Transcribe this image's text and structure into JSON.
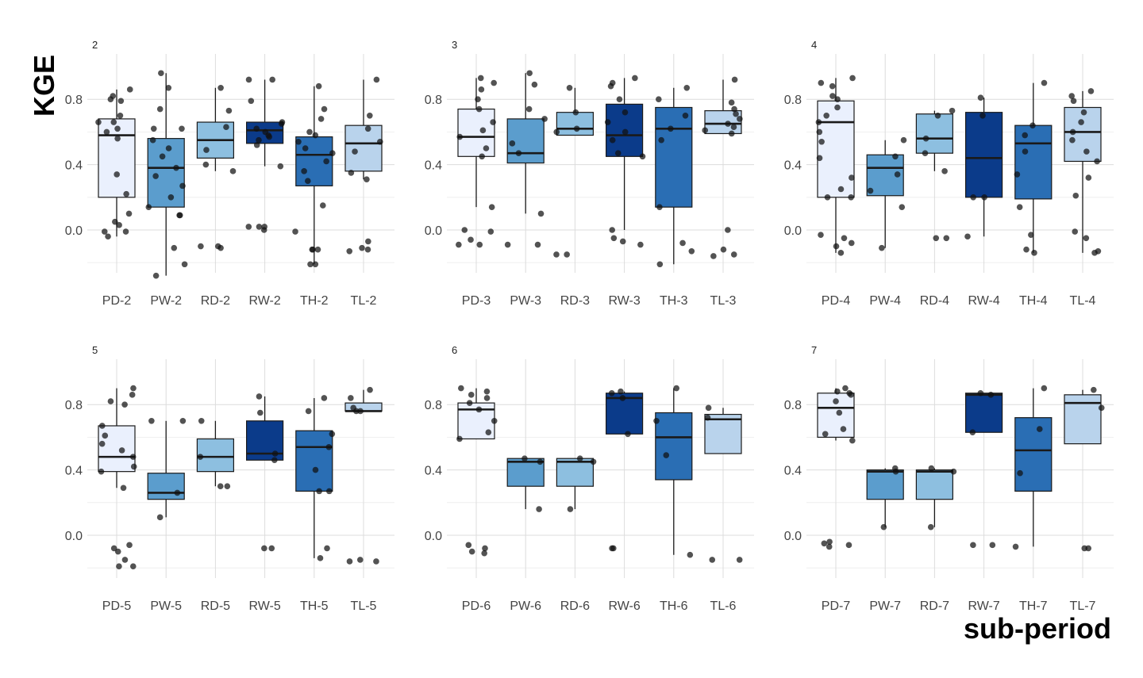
{
  "chart_data": {
    "type": "boxplot",
    "ylabel": "KGE",
    "xlabel": "sub-period",
    "ylim": [
      -0.22,
      0.95
    ],
    "yticks": [
      0.0,
      0.4,
      0.8
    ],
    "ytick_labels": [
      "0.0",
      "0.4",
      "0.8"
    ],
    "grid": true,
    "group_colors": {
      "PD": "#eaf0fd",
      "PW": "#5b9dcd",
      "RD": "#8dbfe0",
      "RW": "#0b3b8a",
      "TH": "#2a6eb4",
      "TL": "#b9d3ec"
    },
    "panels": [
      {
        "title": "2",
        "boxes": [
          {
            "label": "PD-2",
            "group": "PD",
            "q1": 0.2,
            "median": 0.58,
            "q3": 0.68,
            "lower": -0.04,
            "upper": 0.86,
            "points": [
              -0.01,
              -0.01,
              0.03,
              0.05,
              -0.04,
              0.1,
              0.22,
              0.34,
              0.56,
              0.62,
              0.66,
              0.7,
              0.79,
              0.82,
              0.86,
              0.8,
              0.66,
              0.6
            ]
          },
          {
            "label": "PW-2",
            "group": "PW",
            "q1": 0.14,
            "median": 0.38,
            "q3": 0.56,
            "lower": -0.28,
            "upper": 0.96,
            "points": [
              -0.28,
              -0.21,
              -0.11,
              0.09,
              0.09,
              0.14,
              0.2,
              0.27,
              0.33,
              0.38,
              0.55,
              0.62,
              0.62,
              0.74,
              0.87,
              0.96,
              0.45,
              0.5
            ]
          },
          {
            "label": "RD-2",
            "group": "RD",
            "q1": 0.44,
            "median": 0.55,
            "q3": 0.66,
            "lower": 0.36,
            "upper": 0.87,
            "points": [
              -0.1,
              -0.1,
              -0.11,
              0.36,
              0.4,
              0.49,
              0.63,
              0.73,
              0.87
            ]
          },
          {
            "label": "RW-2",
            "group": "RW",
            "q1": 0.53,
            "median": 0.61,
            "q3": 0.66,
            "lower": 0.39,
            "upper": 0.92,
            "points": [
              0.0,
              0.02,
              0.02,
              0.02,
              0.39,
              0.52,
              0.55,
              0.57,
              0.58,
              0.6,
              0.62,
              0.65,
              0.66,
              0.79,
              0.92,
              0.92
            ]
          },
          {
            "label": "TH-2",
            "group": "TH",
            "q1": 0.27,
            "median": 0.46,
            "q3": 0.57,
            "lower": -0.21,
            "upper": 0.88,
            "points": [
              -0.21,
              -0.21,
              -0.12,
              -0.12,
              -0.12,
              -0.01,
              0.15,
              0.3,
              0.36,
              0.42,
              0.47,
              0.5,
              0.54,
              0.58,
              0.6,
              0.68,
              0.74,
              0.88
            ]
          },
          {
            "label": "TL-2",
            "group": "TL",
            "q1": 0.36,
            "median": 0.53,
            "q3": 0.64,
            "lower": 0.31,
            "upper": 0.92,
            "points": [
              -0.07,
              -0.12,
              -0.13,
              -0.11,
              0.31,
              0.35,
              0.48,
              0.54,
              0.62,
              0.7,
              0.92
            ]
          }
        ]
      },
      {
        "title": "3",
        "boxes": [
          {
            "label": "PD-3",
            "group": "PD",
            "q1": 0.45,
            "median": 0.57,
            "q3": 0.74,
            "lower": 0.14,
            "upper": 0.93,
            "points": [
              -0.09,
              -0.09,
              -0.06,
              -0.01,
              0.0,
              0.14,
              0.45,
              0.5,
              0.57,
              0.61,
              0.66,
              0.74,
              0.8,
              0.86,
              0.93,
              0.9
            ]
          },
          {
            "label": "PW-3",
            "group": "PW",
            "q1": 0.41,
            "median": 0.47,
            "q3": 0.68,
            "lower": 0.1,
            "upper": 0.96,
            "points": [
              -0.09,
              -0.09,
              0.1,
              0.47,
              0.53,
              0.68,
              0.74,
              0.89,
              0.96
            ]
          },
          {
            "label": "RD-3",
            "group": "RD",
            "q1": 0.58,
            "median": 0.62,
            "q3": 0.72,
            "lower": 0.58,
            "upper": 0.87,
            "points": [
              -0.15,
              -0.15,
              0.6,
              0.62,
              0.72,
              0.87
            ]
          },
          {
            "label": "RW-3",
            "group": "RW",
            "q1": 0.45,
            "median": 0.58,
            "q3": 0.77,
            "lower": 0.0,
            "upper": 0.93,
            "points": [
              -0.09,
              -0.07,
              -0.05,
              0.0,
              0.45,
              0.47,
              0.55,
              0.6,
              0.66,
              0.72,
              0.8,
              0.88,
              0.93,
              0.9
            ]
          },
          {
            "label": "TH-3",
            "group": "TH",
            "q1": 0.14,
            "median": 0.62,
            "q3": 0.75,
            "lower": -0.21,
            "upper": 0.87,
            "points": [
              -0.21,
              -0.13,
              -0.08,
              0.14,
              0.55,
              0.62,
              0.7,
              0.8,
              0.87
            ]
          },
          {
            "label": "TL-3",
            "group": "TL",
            "q1": 0.59,
            "median": 0.65,
            "q3": 0.73,
            "lower": 0.59,
            "upper": 0.92,
            "points": [
              -0.16,
              -0.15,
              -0.12,
              0.0,
              0.59,
              0.61,
              0.63,
              0.65,
              0.68,
              0.71,
              0.74,
              0.78,
              0.92
            ]
          }
        ]
      },
      {
        "title": "4",
        "boxes": [
          {
            "label": "PD-4",
            "group": "PD",
            "q1": 0.2,
            "median": 0.66,
            "q3": 0.79,
            "lower": -0.14,
            "upper": 0.93,
            "points": [
              -0.14,
              -0.1,
              -0.08,
              -0.05,
              -0.03,
              0.2,
              0.2,
              0.25,
              0.32,
              0.44,
              0.54,
              0.6,
              0.66,
              0.7,
              0.75,
              0.8,
              0.82,
              0.88,
              0.93,
              0.9
            ]
          },
          {
            "label": "PW-4",
            "group": "PW",
            "q1": 0.21,
            "median": 0.38,
            "q3": 0.46,
            "lower": -0.11,
            "upper": 0.55,
            "points": [
              -0.11,
              0.14,
              0.24,
              0.34,
              0.45,
              0.55
            ]
          },
          {
            "label": "RD-4",
            "group": "RD",
            "q1": 0.47,
            "median": 0.56,
            "q3": 0.71,
            "lower": 0.36,
            "upper": 0.73,
            "points": [
              -0.05,
              -0.05,
              0.36,
              0.47,
              0.56,
              0.7,
              0.73
            ]
          },
          {
            "label": "RW-4",
            "group": "RW",
            "q1": 0.2,
            "median": 0.44,
            "q3": 0.72,
            "lower": -0.04,
            "upper": 0.81,
            "points": [
              -0.04,
              0.2,
              0.2,
              0.7,
              0.81
            ]
          },
          {
            "label": "TH-4",
            "group": "TH",
            "q1": 0.19,
            "median": 0.53,
            "q3": 0.64,
            "lower": -0.14,
            "upper": 0.9,
            "points": [
              -0.14,
              -0.12,
              -0.03,
              0.14,
              0.34,
              0.48,
              0.58,
              0.64,
              0.9
            ]
          },
          {
            "label": "TL-4",
            "group": "TL",
            "q1": 0.42,
            "median": 0.6,
            "q3": 0.75,
            "lower": -0.14,
            "upper": 0.85,
            "points": [
              -0.14,
              -0.13,
              -0.05,
              -0.01,
              0.21,
              0.32,
              0.42,
              0.48,
              0.55,
              0.6,
              0.66,
              0.72,
              0.79,
              0.85,
              0.82
            ]
          }
        ]
      },
      {
        "title": "5",
        "boxes": [
          {
            "label": "PD-5",
            "group": "PD",
            "q1": 0.39,
            "median": 0.48,
            "q3": 0.67,
            "lower": 0.29,
            "upper": 0.9,
            "points": [
              -0.19,
              -0.19,
              -0.15,
              -0.1,
              -0.08,
              -0.06,
              0.29,
              0.39,
              0.42,
              0.48,
              0.52,
              0.56,
              0.61,
              0.67,
              0.8,
              0.86,
              0.9,
              0.82
            ]
          },
          {
            "label": "PW-5",
            "group": "PW",
            "q1": 0.22,
            "median": 0.26,
            "q3": 0.38,
            "lower": 0.11,
            "upper": 0.7,
            "points": [
              0.11,
              0.26,
              0.7,
              0.7
            ]
          },
          {
            "label": "RD-5",
            "group": "RD",
            "q1": 0.39,
            "median": 0.48,
            "q3": 0.59,
            "lower": 0.3,
            "upper": 0.7,
            "points": [
              0.3,
              0.3,
              0.48,
              0.7
            ]
          },
          {
            "label": "RW-5",
            "group": "RW",
            "q1": 0.46,
            "median": 0.5,
            "q3": 0.7,
            "lower": 0.46,
            "upper": 0.85,
            "points": [
              -0.08,
              -0.08,
              0.46,
              0.5,
              0.75,
              0.85
            ]
          },
          {
            "label": "TH-5",
            "group": "TH",
            "q1": 0.27,
            "median": 0.54,
            "q3": 0.64,
            "lower": -0.14,
            "upper": 0.84,
            "points": [
              -0.14,
              -0.08,
              0.27,
              0.27,
              0.4,
              0.54,
              0.62,
              0.76,
              0.84
            ]
          },
          {
            "label": "TL-5",
            "group": "TL",
            "q1": 0.76,
            "median": 0.76,
            "q3": 0.81,
            "lower": 0.76,
            "upper": 0.89,
            "points": [
              -0.15,
              -0.16,
              -0.16,
              0.76,
              0.76,
              0.78,
              0.84,
              0.89
            ]
          }
        ]
      },
      {
        "title": "6",
        "boxes": [
          {
            "label": "PD-6",
            "group": "PD",
            "q1": 0.59,
            "median": 0.77,
            "q3": 0.81,
            "lower": 0.59,
            "upper": 0.9,
            "points": [
              -0.11,
              -0.1,
              -0.08,
              -0.06,
              0.59,
              0.63,
              0.7,
              0.77,
              0.81,
              0.84,
              0.86,
              0.88,
              0.9
            ]
          },
          {
            "label": "PW-6",
            "group": "PW",
            "q1": 0.3,
            "median": 0.45,
            "q3": 0.47,
            "lower": 0.16,
            "upper": 0.47,
            "points": [
              0.16,
              0.45,
              0.47
            ]
          },
          {
            "label": "RD-6",
            "group": "RD",
            "q1": 0.3,
            "median": 0.45,
            "q3": 0.47,
            "lower": 0.16,
            "upper": 0.47,
            "points": [
              0.16,
              0.45,
              0.47
            ]
          },
          {
            "label": "RW-6",
            "group": "RW",
            "q1": 0.62,
            "median": 0.84,
            "q3": 0.87,
            "lower": 0.62,
            "upper": 0.88,
            "points": [
              -0.08,
              -0.08,
              0.62,
              0.84,
              0.87,
              0.88
            ]
          },
          {
            "label": "TH-6",
            "group": "TH",
            "q1": 0.34,
            "median": 0.6,
            "q3": 0.75,
            "lower": -0.12,
            "upper": 0.9,
            "points": [
              -0.12,
              0.49,
              0.7,
              0.9
            ]
          },
          {
            "label": "TL-6",
            "group": "TL",
            "q1": 0.5,
            "median": 0.71,
            "q3": 0.74,
            "lower": 0.5,
            "upper": 0.78,
            "points": [
              -0.15,
              -0.15,
              0.72,
              0.78
            ]
          }
        ]
      },
      {
        "title": "7",
        "boxes": [
          {
            "label": "PD-7",
            "group": "PD",
            "q1": 0.6,
            "median": 0.78,
            "q3": 0.87,
            "lower": 0.58,
            "upper": 0.9,
            "points": [
              -0.07,
              -0.06,
              -0.05,
              -0.04,
              0.58,
              0.62,
              0.65,
              0.75,
              0.82,
              0.86,
              0.87,
              0.88,
              0.9
            ]
          },
          {
            "label": "PW-7",
            "group": "PW",
            "q1": 0.22,
            "median": 0.39,
            "q3": 0.4,
            "lower": 0.05,
            "upper": 0.41,
            "points": [
              0.05,
              0.39,
              0.41
            ]
          },
          {
            "label": "RD-7",
            "group": "RD",
            "q1": 0.22,
            "median": 0.39,
            "q3": 0.4,
            "lower": 0.05,
            "upper": 0.41,
            "points": [
              0.05,
              0.39,
              0.41
            ]
          },
          {
            "label": "RW-7",
            "group": "RW",
            "q1": 0.63,
            "median": 0.86,
            "q3": 0.87,
            "lower": 0.63,
            "upper": 0.87,
            "points": [
              -0.06,
              -0.06,
              0.63,
              0.86,
              0.87
            ]
          },
          {
            "label": "TH-7",
            "group": "TH",
            "q1": 0.27,
            "median": 0.52,
            "q3": 0.72,
            "lower": -0.07,
            "upper": 0.9,
            "points": [
              -0.07,
              0.38,
              0.65,
              0.9
            ]
          },
          {
            "label": "TL-7",
            "group": "TL",
            "q1": 0.56,
            "median": 0.81,
            "q3": 0.86,
            "lower": 0.56,
            "upper": 0.89,
            "points": [
              -0.08,
              -0.08,
              0.78,
              0.89
            ]
          }
        ]
      }
    ]
  }
}
